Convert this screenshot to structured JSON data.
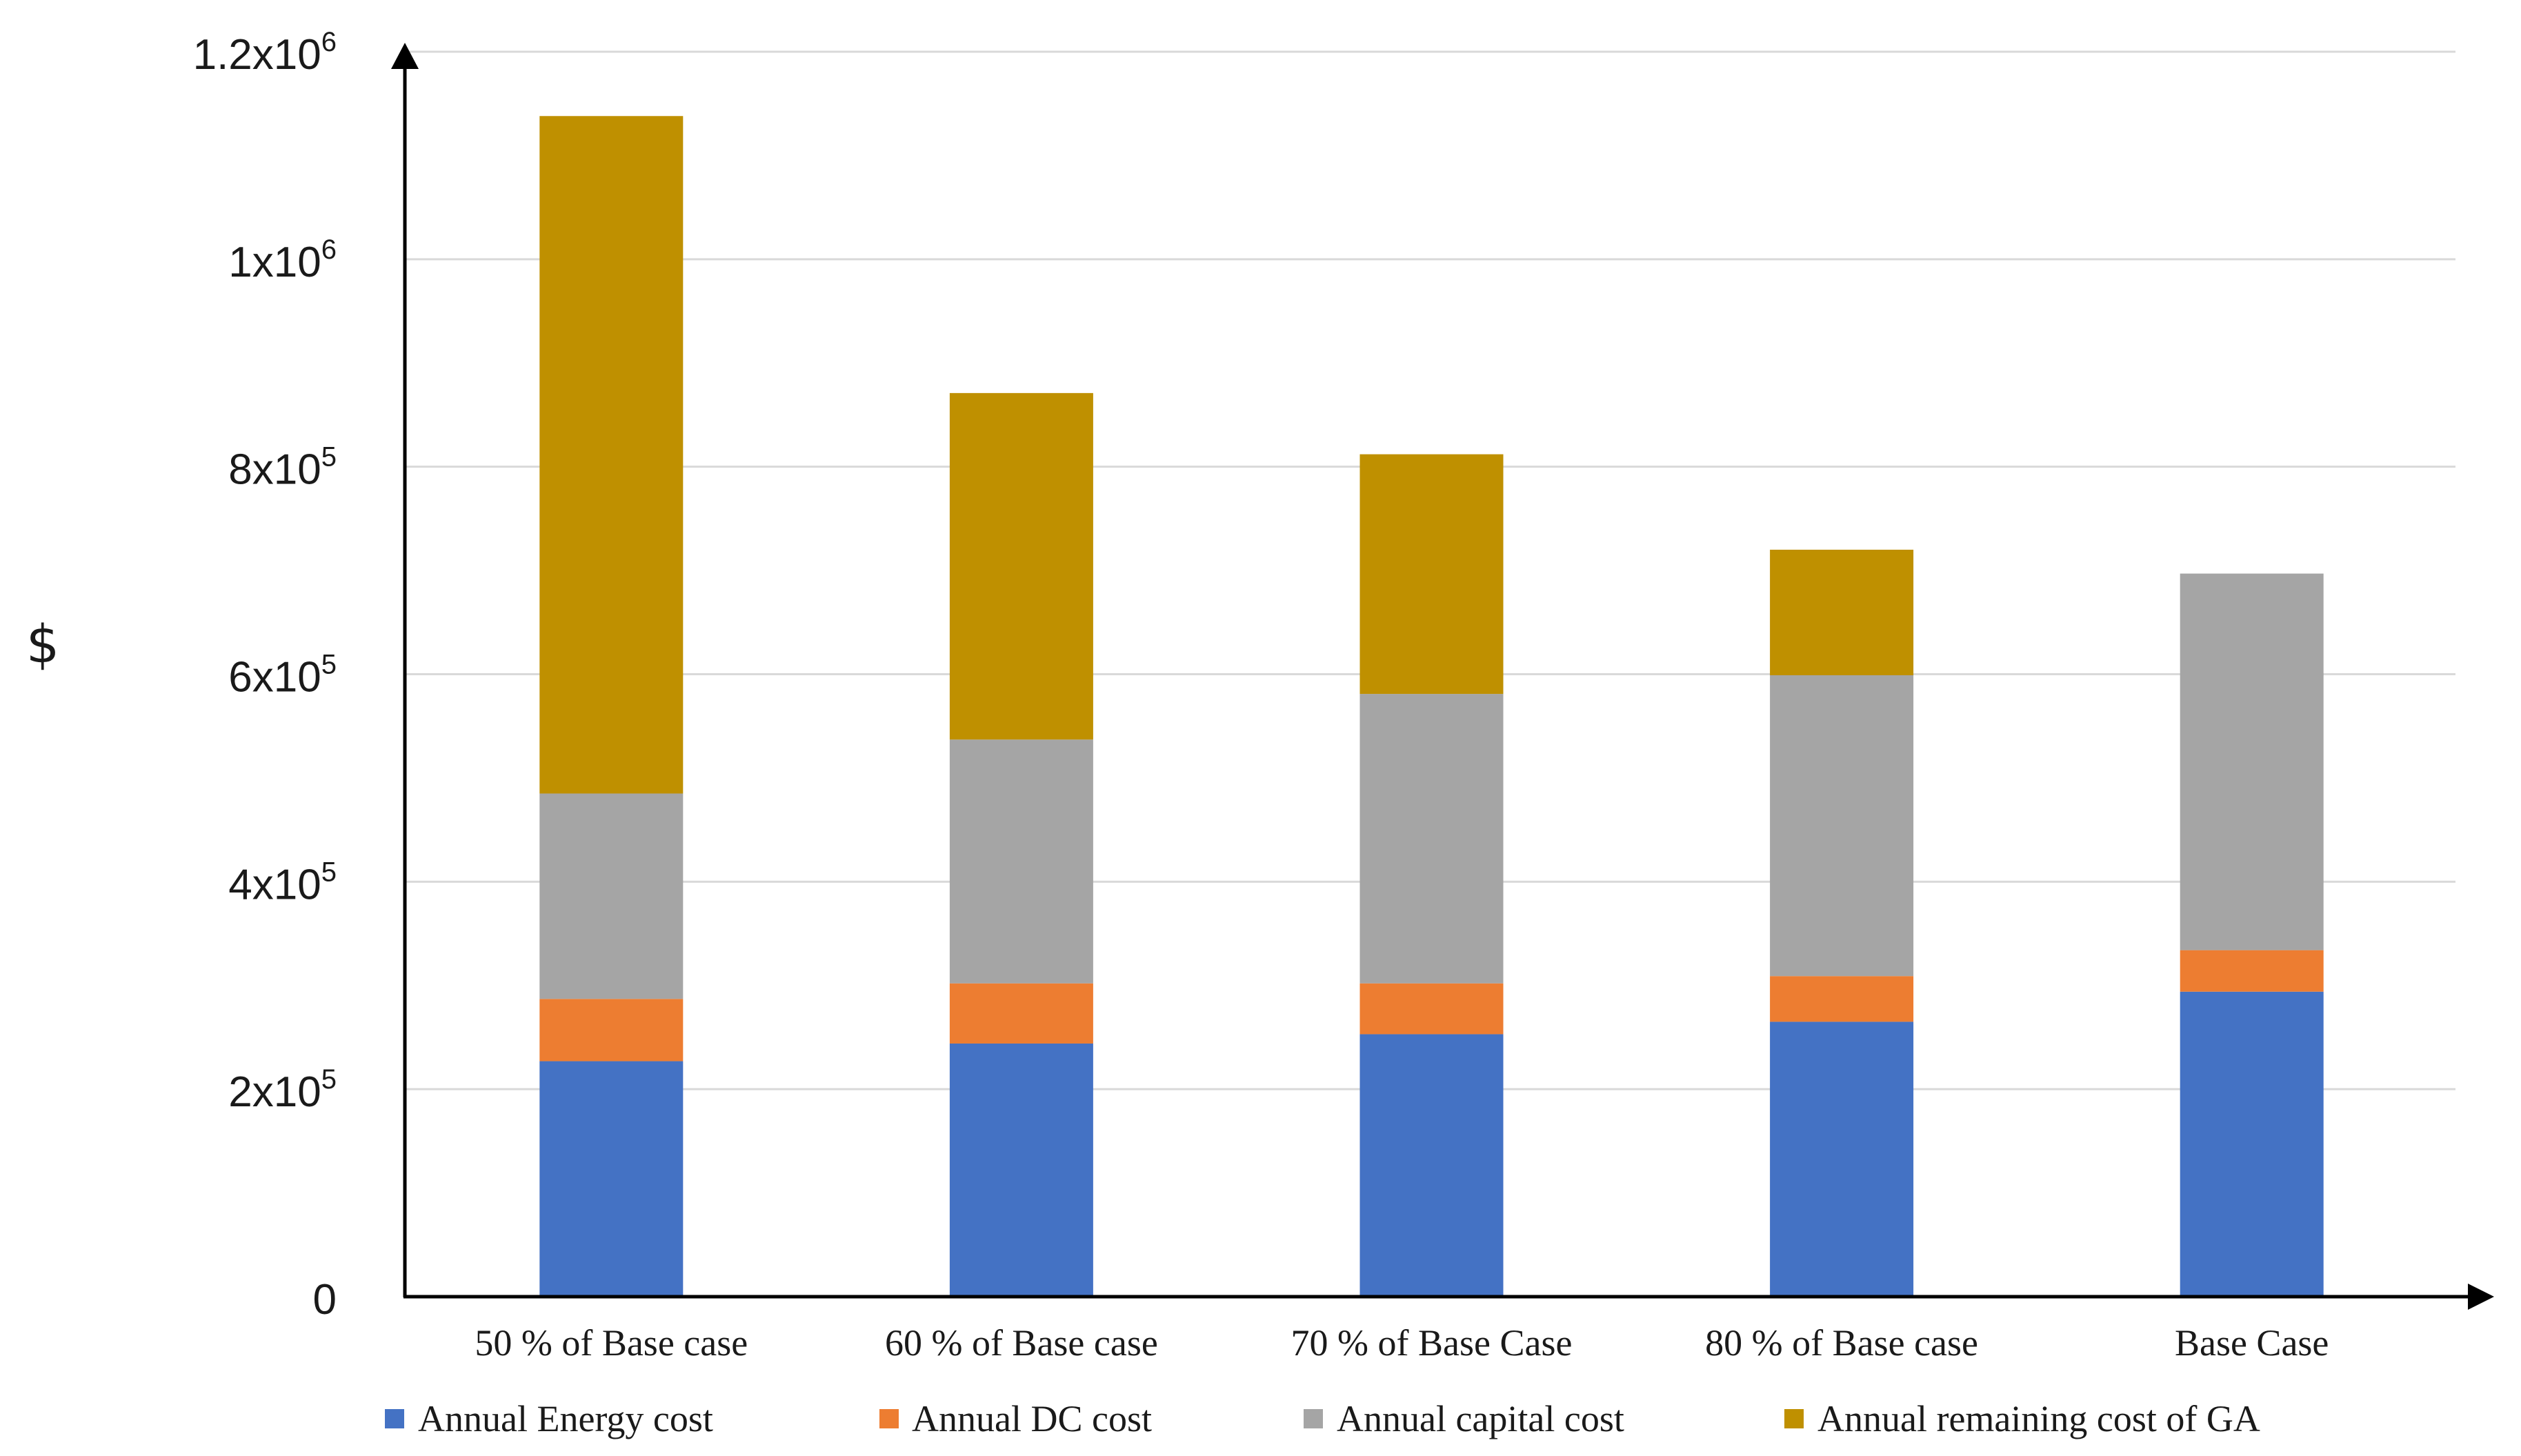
{
  "chart_data": {
    "type": "bar",
    "stacked": true,
    "title": "",
    "xlabel": "",
    "ylabel": "$",
    "ylim": [
      0,
      1200000
    ],
    "grid": true,
    "legend_position": "bottom",
    "categories": [
      "50 % of Base case",
      "60 % of Base case",
      "70 % of Base Case",
      "80 % of Base case",
      "Base Case"
    ],
    "series": [
      {
        "name": "Annual Energy cost",
        "color": "#4472C4",
        "values": [
          227000,
          244000,
          253000,
          265000,
          294000
        ]
      },
      {
        "name": "Annual DC cost",
        "color": "#ED7D31",
        "values": [
          60000,
          58000,
          49000,
          44000,
          40000
        ]
      },
      {
        "name": "Annual capital cost",
        "color": "#A5A5A5",
        "values": [
          198000,
          235000,
          279000,
          290000,
          363000
        ]
      },
      {
        "name": "Annual remaining cost of GA",
        "color": "#BF9000",
        "values": [
          653000,
          334000,
          231000,
          121000,
          0
        ]
      }
    ],
    "y_ticks": [
      {
        "value": 0,
        "base": "0",
        "exp": ""
      },
      {
        "value": 200000,
        "base": "2x10",
        "exp": "5"
      },
      {
        "value": 400000,
        "base": "4x10",
        "exp": "5"
      },
      {
        "value": 600000,
        "base": "6x10",
        "exp": "5"
      },
      {
        "value": 800000,
        "base": "8x10",
        "exp": "5"
      },
      {
        "value": 1000000,
        "base": "1x10",
        "exp": "6"
      },
      {
        "value": 1200000,
        "base": "1.2x10",
        "exp": "6"
      }
    ]
  }
}
